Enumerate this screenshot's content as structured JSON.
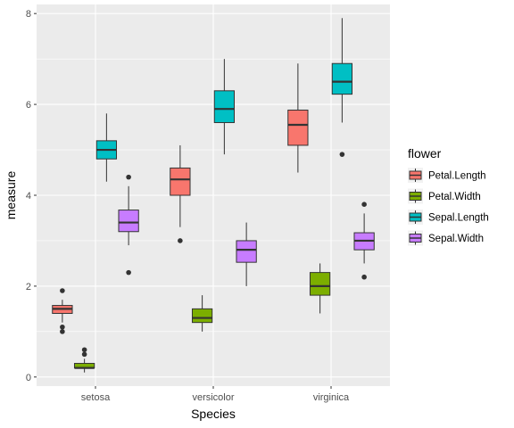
{
  "chart_data": {
    "type": "boxplot",
    "xlabel": "Species",
    "ylabel": "measure",
    "ylim": [
      -0.2,
      8.2
    ],
    "y_ticks": [
      0,
      2,
      4,
      6,
      8
    ],
    "grid": true,
    "legend_position": "right",
    "legend_title": "flower",
    "categories": [
      "setosa",
      "versicolor",
      "virginica"
    ],
    "series": [
      {
        "name": "Petal.Length",
        "color": "#F8766D",
        "boxes": [
          {
            "category": "setosa",
            "min": 1.2,
            "q1": 1.4,
            "median": 1.5,
            "q3": 1.575,
            "max": 1.7,
            "outliers": [
              1.0,
              1.1,
              1.9
            ]
          },
          {
            "category": "versicolor",
            "min": 3.3,
            "q1": 4.0,
            "median": 4.35,
            "q3": 4.6,
            "max": 5.1,
            "outliers": [
              3.0
            ]
          },
          {
            "category": "virginica",
            "min": 4.5,
            "q1": 5.1,
            "median": 5.55,
            "q3": 5.875,
            "max": 6.9,
            "outliers": []
          }
        ]
      },
      {
        "name": "Petal.Width",
        "color": "#7CAE00",
        "boxes": [
          {
            "category": "setosa",
            "min": 0.1,
            "q1": 0.2,
            "median": 0.2,
            "q3": 0.3,
            "max": 0.4,
            "outliers": [
              0.5,
              0.6
            ]
          },
          {
            "category": "versicolor",
            "min": 1.0,
            "q1": 1.2,
            "median": 1.3,
            "q3": 1.5,
            "max": 1.8,
            "outliers": []
          },
          {
            "category": "virginica",
            "min": 1.4,
            "q1": 1.8,
            "median": 2.0,
            "q3": 2.3,
            "max": 2.5,
            "outliers": []
          }
        ]
      },
      {
        "name": "Sepal.Length",
        "color": "#00BFC4",
        "boxes": [
          {
            "category": "setosa",
            "min": 4.3,
            "q1": 4.8,
            "median": 5.0,
            "q3": 5.2,
            "max": 5.8,
            "outliers": []
          },
          {
            "category": "versicolor",
            "min": 4.9,
            "q1": 5.6,
            "median": 5.9,
            "q3": 6.3,
            "max": 7.0,
            "outliers": []
          },
          {
            "category": "virginica",
            "min": 5.6,
            "q1": 6.225,
            "median": 6.5,
            "q3": 6.9,
            "max": 7.9,
            "outliers": [
              4.9
            ]
          }
        ]
      },
      {
        "name": "Sepal.Width",
        "color": "#C77CFF",
        "boxes": [
          {
            "category": "setosa",
            "min": 2.9,
            "q1": 3.2,
            "median": 3.4,
            "q3": 3.675,
            "max": 4.2,
            "outliers": [
              2.3,
              4.4
            ]
          },
          {
            "category": "versicolor",
            "min": 2.0,
            "q1": 2.525,
            "median": 2.8,
            "q3": 3.0,
            "max": 3.4,
            "outliers": []
          },
          {
            "category": "virginica",
            "min": 2.5,
            "q1": 2.8,
            "median": 3.0,
            "q3": 3.175,
            "max": 3.6,
            "outliers": [
              2.2,
              3.8
            ]
          }
        ]
      }
    ]
  }
}
